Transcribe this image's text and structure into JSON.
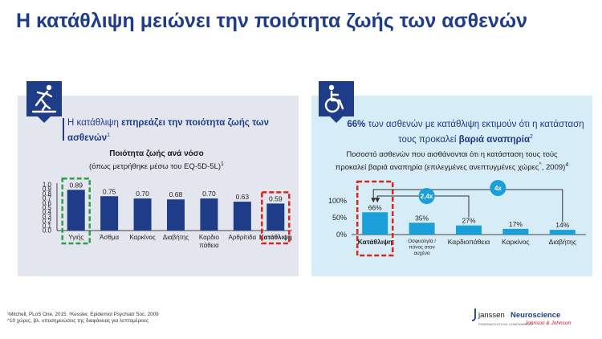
{
  "title": "Η κατάθλιψη μειώνει την ποιότητα ζωής των ασθενών",
  "left_panel": {
    "headline_pre": "Η κατάθλιψη ",
    "headline_bold": "επηρεάζει την ποιότητα ζωής των ασθενών",
    "headline_sup": "1",
    "chart_title": "Ποιότητα ζωής ανά νόσο",
    "chart_subtitle": "(όπως μετρήθηκε μέσω του EQ-5D-5L)",
    "chart_subtitle_sup": "1"
  },
  "right_panel": {
    "headline_bold": "66%",
    "headline_text": " των ασθενών με κατάθλιψη εκτιμούν ότι η κατάσταση τους προκαλεί ",
    "headline_bold2": "βαριά αναπηρία",
    "headline_sup": "2",
    "chart_title_line1": "Ποσοστό ασθενών που αισθάνονται ότι η κατάσταση τους τούς",
    "chart_title_line2": "προκαλεί βαριά αναπηρία (επιλεγμένες ανεπτυγμένες χώρες",
    "chart_title_sup1": "^",
    "chart_title_end": ", 2009)",
    "chart_title_sup2": "4",
    "ratio_small": "2,4x",
    "ratio_large": "4x"
  },
  "chart_data": [
    {
      "type": "bar",
      "title": "Ποιότητα ζωής ανά νόσο",
      "subtitle": "(όπως μετρήθηκε μέσω του EQ-5D-5L)",
      "categories": [
        "Υγιής",
        "Άσθμα",
        "Καρκίνος",
        "Διαβήτης",
        "Καρδιο πάθεια",
        "Αρθρίτιδα",
        "Κατάθλιψη"
      ],
      "values": [
        0.89,
        0.75,
        0.7,
        0.68,
        0.7,
        0.63,
        0.59
      ],
      "value_labels": [
        "0.89",
        "0.75",
        "0.70",
        "0.68",
        "0.70",
        "0.63",
        "0.59"
      ],
      "yticks": [
        "0.0",
        "0.1",
        "0.2",
        "0.3",
        "0.4",
        "0.5",
        "0.6",
        "0.7",
        "0.8",
        "0.9",
        "1.0"
      ],
      "ylim": [
        0,
        1.0
      ],
      "highlight": {
        "Υγιής": "#2e9e48",
        "Κατάθλιψη": "#d7261c"
      },
      "xlabel": "",
      "ylabel": ""
    },
    {
      "type": "bar",
      "title": "Ποσοστό ασθενών που αισθάνονται ότι η κατάσταση τους τούς προκαλεί βαριά αναπηρία",
      "categories": [
        "Κατάθλιψη",
        "Οσφυαλγία / πόνος στον αυχένα",
        "Καρδιοπάθεια",
        "Καρκίνος",
        "Διαβήτης"
      ],
      "values": [
        66,
        35,
        27,
        17,
        14
      ],
      "value_labels": [
        "66%",
        "35%",
        "27%",
        "17%",
        "14%"
      ],
      "yticks": [
        "0%",
        "50%",
        "100%"
      ],
      "ylim": [
        0,
        100
      ],
      "highlight": {
        "Κατάθλιψη": "#d7261c"
      },
      "xlabel": "",
      "ylabel": ""
    }
  ],
  "footnote_line1": "¹Mitchell, PLoS One, 2015. ²Kessler, Epidemiol Psychiatr Soc, 2009",
  "footnote_line2": "^10 χώρες, βλ. υποσημειώσεις της διαφάνειας για λεπτομέρειες",
  "logo": {
    "brand": "janssen",
    "division": "Neuroscience",
    "tagline": "PHARMACEUTICAL COMPANIES OF",
    "parent": "Johnson & Johnson"
  },
  "colors": {
    "navy": "#1f3c88",
    "bar_right": "#1a9fd8",
    "badge": "#1a9fd8",
    "green": "#2e9e48",
    "red": "#d7261c"
  },
  "icons": [
    "falling-person-icon",
    "wheelchair-icon"
  ]
}
